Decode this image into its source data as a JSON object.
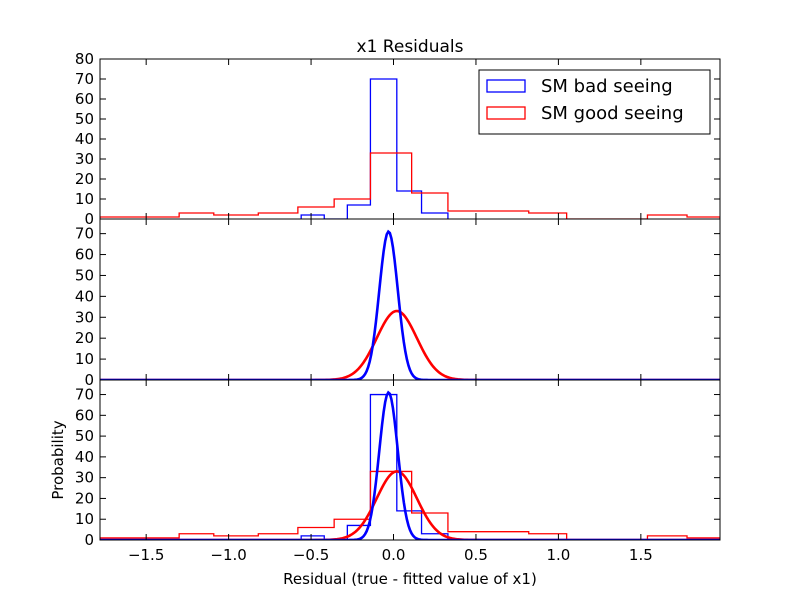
{
  "chart_data": {
    "type": "histogram",
    "title": "x1 Residuals",
    "xlabel": "Residual (true - fitted value of x1)",
    "ylabel": "Probability",
    "xlim": [
      -1.78,
      1.98
    ],
    "x_ticks": [
      -1.5,
      -1.0,
      -0.5,
      0.0,
      0.5,
      1.0,
      1.5
    ],
    "x_tick_labels": [
      "−1.5",
      "−1.0",
      "−0.5",
      "0.0",
      "0.5",
      "1.0",
      "1.5"
    ],
    "panels": [
      {
        "ylim": [
          0,
          80
        ],
        "y_ticks": [
          0,
          10,
          20,
          30,
          40,
          50,
          60,
          70,
          80
        ],
        "content": [
          "hist"
        ],
        "legend": true
      },
      {
        "ylim": [
          0,
          77
        ],
        "y_ticks": [
          0,
          10,
          20,
          30,
          40,
          50,
          60,
          70
        ],
        "content": [
          "gauss"
        ],
        "legend": false
      },
      {
        "ylim": [
          0,
          77
        ],
        "y_ticks": [
          0,
          10,
          20,
          30,
          40,
          50,
          60,
          70
        ],
        "content": [
          "hist",
          "gauss"
        ],
        "legend": false
      }
    ],
    "series": [
      {
        "name": "SM bad seeing",
        "color": "#0000ff",
        "bin_edges": [
          -0.56,
          -0.42,
          -0.28,
          -0.14,
          0.02,
          0.17,
          0.33
        ],
        "values": [
          2,
          0,
          7,
          70,
          14,
          3
        ],
        "gaussian": {
          "mean": -0.03,
          "sigma": 0.056,
          "peak": 71
        }
      },
      {
        "name": "SM good seeing",
        "color": "#ff0000",
        "bin_edges": [
          -1.78,
          -1.3,
          -1.09,
          -0.82,
          -0.58,
          -0.36,
          -0.14,
          0.11,
          0.33,
          0.82,
          1.05,
          1.54,
          1.78,
          1.98
        ],
        "values": [
          1,
          3,
          2,
          3,
          6,
          10,
          33,
          13,
          4,
          3,
          0,
          2,
          1
        ],
        "gaussian": {
          "mean": 0.02,
          "sigma": 0.122,
          "peak": 33
        }
      }
    ]
  }
}
